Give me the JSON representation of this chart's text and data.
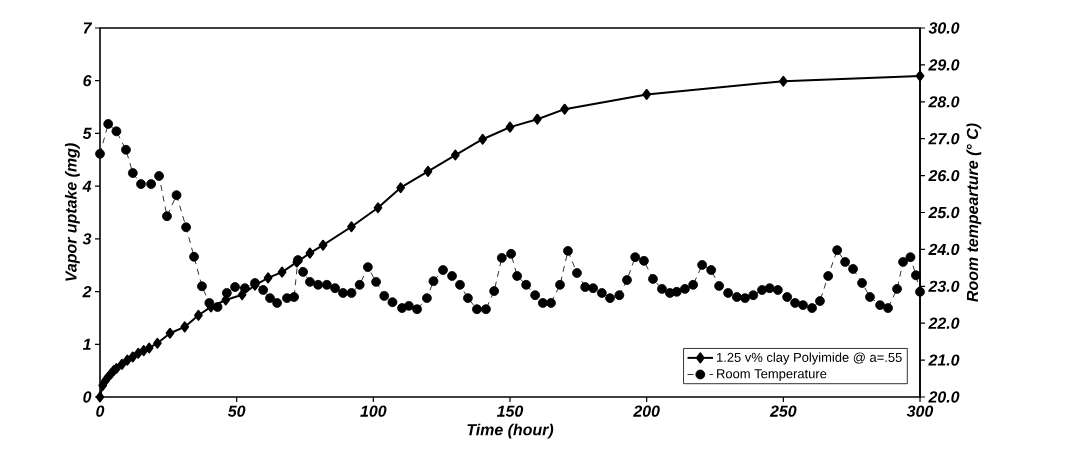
{
  "chart_data": {
    "type": "line",
    "xlabel": "Time (hour)",
    "ylabel": "Vapor uptake (mg)",
    "y2label": "Room tempearture (° C)",
    "xlim": [
      0,
      300
    ],
    "xticks": [
      0,
      50,
      100,
      150,
      200,
      250,
      300
    ],
    "ylim": [
      0,
      7
    ],
    "yticks": [
      0,
      1,
      2,
      3,
      4,
      5,
      6,
      7
    ],
    "y2lim": [
      20,
      30
    ],
    "y2ticks": [
      {
        "value": 20,
        "label": "20.0"
      },
      {
        "value": 21,
        "label": "21.0"
      },
      {
        "value": 22,
        "label": "22.0"
      },
      {
        "value": 23,
        "label": "23.0"
      },
      {
        "value": 24,
        "label": "24.0"
      },
      {
        "value": 25,
        "label": "25.0"
      },
      {
        "value": 26,
        "label": "26.0"
      },
      {
        "value": 27,
        "label": "27.0"
      },
      {
        "value": 28,
        "label": "28.0"
      },
      {
        "value": 29,
        "label": "29.0"
      },
      {
        "value": 30,
        "label": "30.0"
      }
    ],
    "legend": "bottom right",
    "series": [
      {
        "name": "1.25 v% clay Polyimide @ a=.55",
        "color": "#000000",
        "marker": "diamond",
        "line_style": "solid",
        "x": [
          0,
          1,
          2,
          3,
          4,
          5,
          6,
          8,
          10,
          12,
          14,
          16,
          18,
          21,
          25.6,
          31,
          36,
          40.6,
          46,
          52,
          56.7,
          61.5,
          66.6,
          72,
          76.8,
          81.6,
          92,
          101.7,
          110,
          120,
          130,
          140,
          150,
          160,
          170,
          200,
          250,
          300
        ],
        "values": [
          0,
          0.22,
          0.31,
          0.38,
          0.44,
          0.5,
          0.54,
          0.62,
          0.7,
          0.76,
          0.83,
          0.88,
          0.93,
          1.02,
          1.21,
          1.33,
          1.55,
          1.71,
          1.84,
          1.94,
          2.12,
          2.26,
          2.37,
          2.56,
          2.73,
          2.88,
          3.23,
          3.59,
          3.97,
          4.28,
          4.59,
          4.89,
          5.12,
          5.27,
          5.46,
          5.74,
          5.99,
          6.09
        ]
      },
      {
        "name": "Room Temperature",
        "color": "#000000",
        "marker": "circle",
        "line_style": "dashed",
        "axis": "y2",
        "x": [
          0,
          3,
          6,
          9.5,
          12,
          15,
          18.7,
          21.6,
          24.5,
          28,
          31.5,
          34.4,
          37.3,
          40,
          43,
          46.4,
          49.4,
          53,
          56.7,
          59.7,
          62.2,
          64.8,
          68.4,
          71,
          72.4,
          74.3,
          76.8,
          79.8,
          83,
          86,
          88.9,
          92,
          95,
          98,
          101,
          104,
          107,
          110.5,
          113,
          116,
          119.6,
          122,
          125.5,
          128.8,
          131.7,
          134.6,
          137.9,
          141.2,
          144.2,
          147,
          150.4,
          152.6,
          155.9,
          159.2,
          162,
          165,
          168.3,
          171.2,
          174.5,
          177.5,
          180.4,
          183.6,
          186.6,
          190,
          192.8,
          195.8,
          199,
          202.3,
          205.6,
          208.5,
          211,
          214,
          217,
          220.3,
          223.6,
          226.5,
          229.8,
          233,
          236,
          239,
          242.2,
          245,
          248,
          251.4,
          254.3,
          257.2,
          260.5,
          263.4,
          266.4,
          269.7,
          272.6,
          275.5,
          278.8,
          281.7,
          285.4,
          288.3,
          291.6,
          293.8,
          296.5,
          298.5,
          300
        ],
        "values": [
          26.59,
          27.4,
          27.2,
          26.7,
          26.07,
          25.77,
          25.77,
          25.99,
          24.9,
          25.47,
          24.6,
          23.8,
          23.0,
          22.55,
          22.44,
          22.82,
          22.98,
          22.95,
          23.09,
          22.9,
          22.68,
          22.55,
          22.68,
          22.71,
          23.71,
          23.39,
          23.12,
          23.04,
          23.04,
          22.95,
          22.82,
          22.82,
          23.04,
          23.52,
          23.12,
          22.74,
          22.57,
          22.41,
          22.47,
          22.38,
          22.68,
          23.14,
          23.44,
          23.28,
          23.04,
          22.68,
          22.38,
          22.38,
          22.87,
          23.77,
          23.88,
          23.28,
          23.04,
          22.76,
          22.55,
          22.55,
          23.04,
          23.96,
          23.36,
          22.98,
          22.95,
          22.82,
          22.68,
          22.76,
          23.17,
          23.79,
          23.69,
          23.2,
          22.93,
          22.82,
          22.85,
          22.93,
          23.04,
          23.58,
          23.44,
          23.01,
          22.82,
          22.71,
          22.68,
          22.76,
          22.9,
          22.95,
          22.9,
          22.71,
          22.55,
          22.49,
          22.41,
          22.6,
          23.28,
          23.98,
          23.66,
          23.47,
          23.09,
          22.71,
          22.49,
          22.41,
          22.93,
          23.66,
          23.79,
          23.3,
          22.85
        ]
      }
    ]
  }
}
